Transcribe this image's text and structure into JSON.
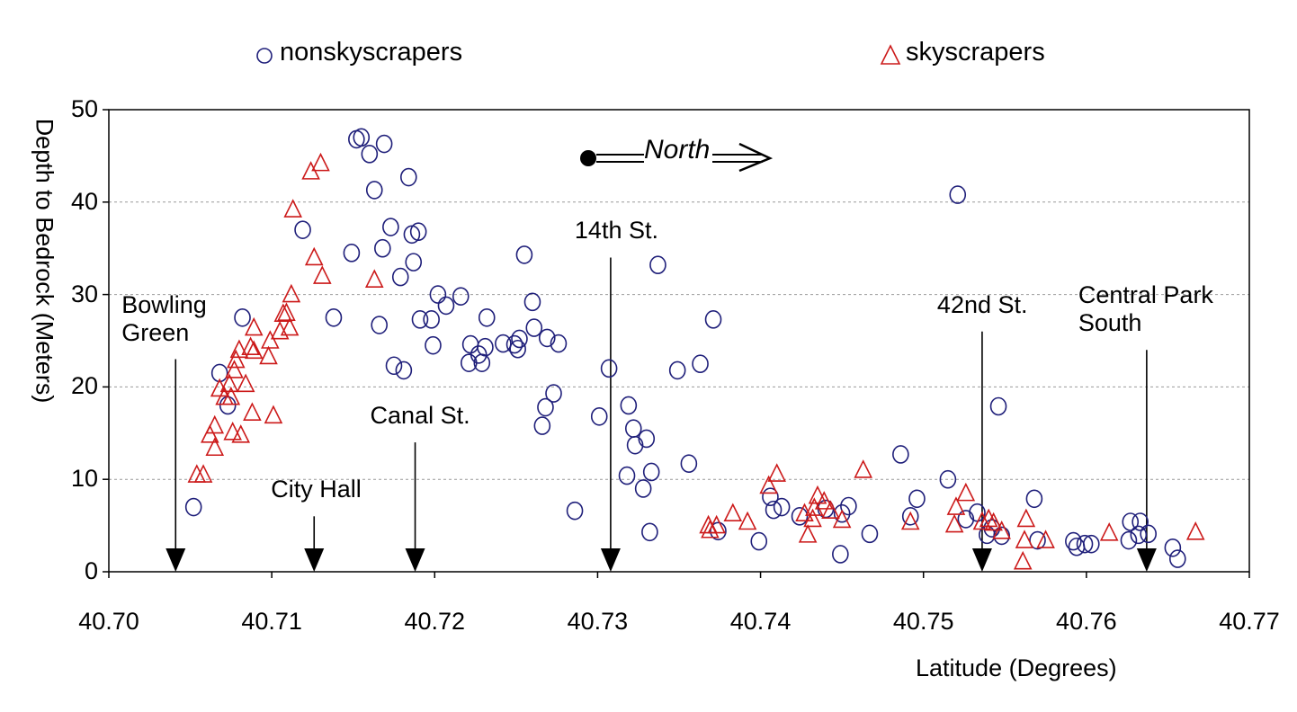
{
  "chart_data": {
    "type": "scatter",
    "xlabel": "Latitude (Degrees)",
    "ylabel": "Depth to Bedrock (Meters)",
    "xlim": [
      40.7,
      40.77
    ],
    "ylim": [
      0,
      50
    ],
    "x_ticks": [
      "40.70",
      "40.71",
      "40.72",
      "40.73",
      "40.74",
      "40.75",
      "40.76",
      "40.77"
    ],
    "y_ticks": [
      "0",
      "10",
      "20",
      "30",
      "40",
      "50"
    ],
    "grid": "horizontal dashed",
    "legend_placement": "top",
    "series": [
      {
        "name": "nonskyscrapers",
        "marker": "circle",
        "color": "#1f1f7a",
        "points": [
          [
            40.7052,
            7.0
          ],
          [
            40.7068,
            21.5
          ],
          [
            40.7073,
            18.0
          ],
          [
            40.7082,
            27.5
          ],
          [
            40.7119,
            37.0
          ],
          [
            40.7138,
            27.5
          ],
          [
            40.7149,
            34.5
          ],
          [
            40.7152,
            46.8
          ],
          [
            40.7155,
            47.0
          ],
          [
            40.716,
            45.2
          ],
          [
            40.7163,
            41.3
          ],
          [
            40.7166,
            26.7
          ],
          [
            40.7168,
            35.0
          ],
          [
            40.7169,
            46.3
          ],
          [
            40.7173,
            37.3
          ],
          [
            40.7175,
            22.3
          ],
          [
            40.7179,
            31.9
          ],
          [
            40.7181,
            21.8
          ],
          [
            40.7184,
            42.7
          ],
          [
            40.7186,
            36.5
          ],
          [
            40.7187,
            33.5
          ],
          [
            40.719,
            36.8
          ],
          [
            40.7191,
            27.3
          ],
          [
            40.7198,
            27.3
          ],
          [
            40.7199,
            24.5
          ],
          [
            40.7202,
            30.0
          ],
          [
            40.7207,
            28.8
          ],
          [
            40.7216,
            29.8
          ],
          [
            40.7221,
            22.6
          ],
          [
            40.7222,
            24.6
          ],
          [
            40.7227,
            23.5
          ],
          [
            40.7229,
            22.6
          ],
          [
            40.7231,
            24.3
          ],
          [
            40.7232,
            27.5
          ],
          [
            40.7242,
            24.7
          ],
          [
            40.7249,
            24.6
          ],
          [
            40.7251,
            24.1
          ],
          [
            40.7252,
            25.2
          ],
          [
            40.7255,
            34.3
          ],
          [
            40.726,
            29.2
          ],
          [
            40.7261,
            26.4
          ],
          [
            40.7266,
            15.8
          ],
          [
            40.7268,
            17.8
          ],
          [
            40.7269,
            25.3
          ],
          [
            40.7273,
            19.3
          ],
          [
            40.7276,
            24.7
          ],
          [
            40.7286,
            6.6
          ],
          [
            40.7301,
            16.8
          ],
          [
            40.7307,
            22.0
          ],
          [
            40.7318,
            10.4
          ],
          [
            40.7319,
            18.0
          ],
          [
            40.7322,
            15.5
          ],
          [
            40.7323,
            13.7
          ],
          [
            40.7328,
            9.0
          ],
          [
            40.733,
            14.4
          ],
          [
            40.7332,
            4.3
          ],
          [
            40.7333,
            10.8
          ],
          [
            40.7337,
            33.2
          ],
          [
            40.7349,
            21.8
          ],
          [
            40.7356,
            11.7
          ],
          [
            40.7363,
            22.5
          ],
          [
            40.7371,
            27.3
          ],
          [
            40.7374,
            4.4
          ],
          [
            40.7399,
            3.3
          ],
          [
            40.7406,
            8.1
          ],
          [
            40.7408,
            6.7
          ],
          [
            40.7413,
            7.0
          ],
          [
            40.7424,
            6.0
          ],
          [
            40.744,
            6.8
          ],
          [
            40.7449,
            1.9
          ],
          [
            40.745,
            6.3
          ],
          [
            40.7454,
            7.1
          ],
          [
            40.7467,
            4.1
          ],
          [
            40.7486,
            12.7
          ],
          [
            40.7492,
            6.0
          ],
          [
            40.7496,
            7.9
          ],
          [
            40.7515,
            10.0
          ],
          [
            40.7521,
            40.8
          ],
          [
            40.7526,
            5.7
          ],
          [
            40.7533,
            6.4
          ],
          [
            40.7539,
            4.0
          ],
          [
            40.7542,
            4.7
          ],
          [
            40.7546,
            17.9
          ],
          [
            40.7548,
            3.9
          ],
          [
            40.7568,
            7.9
          ],
          [
            40.757,
            3.4
          ],
          [
            40.7592,
            3.3
          ],
          [
            40.7594,
            2.7
          ],
          [
            40.7599,
            3.0
          ],
          [
            40.7603,
            3.0
          ],
          [
            40.7626,
            3.4
          ],
          [
            40.7627,
            5.4
          ],
          [
            40.7632,
            4.0
          ],
          [
            40.7633,
            5.4
          ],
          [
            40.7638,
            4.1
          ],
          [
            40.7653,
            2.6
          ],
          [
            40.7656,
            1.4
          ]
        ]
      },
      {
        "name": "skyscrapers",
        "marker": "triangle",
        "color": "#cc1a1a",
        "points": [
          [
            40.7054,
            10.5
          ],
          [
            40.7058,
            10.5
          ],
          [
            40.7062,
            14.8
          ],
          [
            40.7065,
            15.8
          ],
          [
            40.7065,
            13.4
          ],
          [
            40.7068,
            19.8
          ],
          [
            40.7071,
            18.9
          ],
          [
            40.7074,
            20.3
          ],
          [
            40.7075,
            18.9
          ],
          [
            40.7076,
            15.1
          ],
          [
            40.7077,
            21.8
          ],
          [
            40.7078,
            22.9
          ],
          [
            40.708,
            24.0
          ],
          [
            40.7081,
            14.8
          ],
          [
            40.7084,
            20.3
          ],
          [
            40.7087,
            24.3
          ],
          [
            40.7088,
            17.2
          ],
          [
            40.7089,
            23.9
          ],
          [
            40.7089,
            26.4
          ],
          [
            40.7098,
            23.3
          ],
          [
            40.7099,
            25.0
          ],
          [
            40.7101,
            16.9
          ],
          [
            40.7105,
            26.0
          ],
          [
            40.7107,
            27.9
          ],
          [
            40.7109,
            28.0
          ],
          [
            40.7111,
            26.4
          ],
          [
            40.7112,
            30.0
          ],
          [
            40.7113,
            39.2
          ],
          [
            40.7124,
            43.3
          ],
          [
            40.7126,
            34.0
          ],
          [
            40.713,
            44.2
          ],
          [
            40.7131,
            32.0
          ],
          [
            40.7163,
            31.6
          ],
          [
            40.7368,
            5.0
          ],
          [
            40.7369,
            4.5
          ],
          [
            40.7373,
            5.0
          ],
          [
            40.7383,
            6.3
          ],
          [
            40.7392,
            5.4
          ],
          [
            40.7405,
            9.3
          ],
          [
            40.741,
            10.6
          ],
          [
            40.7427,
            6.3
          ],
          [
            40.7429,
            4.0
          ],
          [
            40.7432,
            5.7
          ],
          [
            40.7433,
            6.9
          ],
          [
            40.7435,
            8.2
          ],
          [
            40.7439,
            7.6
          ],
          [
            40.7443,
            6.6
          ],
          [
            40.745,
            5.6
          ],
          [
            40.7463,
            11.0
          ],
          [
            40.7492,
            5.4
          ],
          [
            40.7519,
            5.1
          ],
          [
            40.752,
            7.0
          ],
          [
            40.7526,
            8.5
          ],
          [
            40.7536,
            5.4
          ],
          [
            40.754,
            5.7
          ],
          [
            40.7543,
            5.3
          ],
          [
            40.7548,
            4.4
          ],
          [
            40.7561,
            1.1
          ],
          [
            40.7562,
            3.4
          ],
          [
            40.7563,
            5.7
          ],
          [
            40.7575,
            3.4
          ],
          [
            40.7614,
            4.2
          ],
          [
            40.7667,
            4.3
          ]
        ]
      }
    ],
    "annotations": [
      {
        "text": "Bowling\nGreen",
        "x": 40.7041,
        "arrow_top": 23
      },
      {
        "text": "City Hall",
        "x": 40.7126,
        "arrow_top": 6
      },
      {
        "text": "Canal St.",
        "x": 40.7188,
        "arrow_top": 14
      },
      {
        "text": "14th St.",
        "x": 40.7308,
        "arrow_top": 34
      },
      {
        "text": "42nd St.",
        "x": 40.7536,
        "arrow_top": 26
      },
      {
        "text": "Central Park\nSouth",
        "x": 40.7637,
        "arrow_top": 24
      }
    ],
    "north_label": "North"
  }
}
